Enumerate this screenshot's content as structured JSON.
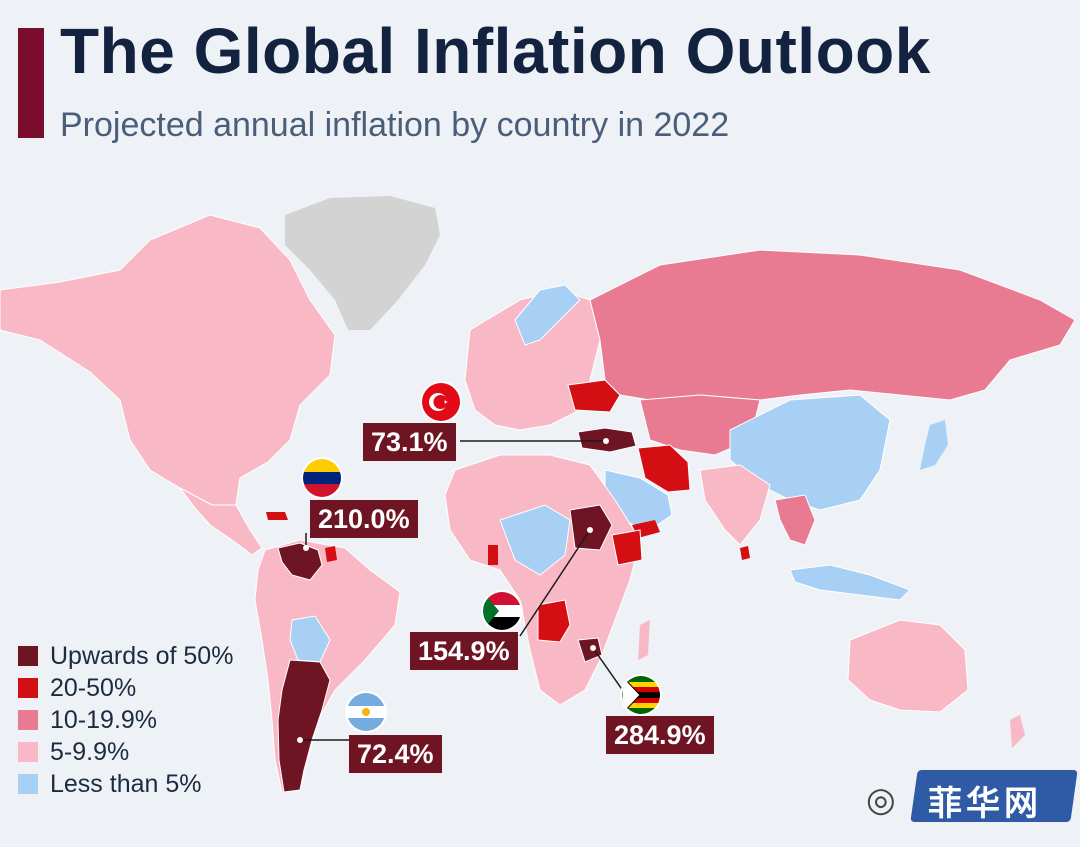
{
  "header": {
    "title": "The Global Inflation Outlook",
    "subtitle": "Projected annual inflation by country in 2022"
  },
  "colors": {
    "upwards_of_50": "#6e1423",
    "20_50": "#d40f14",
    "10_19_9": "#e87a92",
    "5_9_9": "#f9b8c6",
    "less_than_5": "#a8d0f5",
    "no_data": "#d3d3d3",
    "accent": "#7a0c2e"
  },
  "legend": [
    {
      "label": "Upwards of 50%",
      "color": "#6e1423"
    },
    {
      "label": "20-50%",
      "color": "#d40f14"
    },
    {
      "label": "10-19.9%",
      "color": "#e87a92"
    },
    {
      "label": "5-9.9%",
      "color": "#f9b8c6"
    },
    {
      "label": "Less than 5%",
      "color": "#a8d0f5"
    }
  ],
  "callouts": {
    "turkey": {
      "value": "73.1%",
      "flag": "turkey-flag-icon"
    },
    "venezuela": {
      "value": "210.0%",
      "flag": "venezuela-flag-icon"
    },
    "sudan": {
      "value": "154.9%",
      "flag": "sudan-flag-icon"
    },
    "zimbabwe": {
      "value": "284.9%",
      "flag": "zimbabwe-flag-icon"
    },
    "argentina": {
      "value": "72.4%",
      "flag": "argentina-flag-icon"
    }
  },
  "watermark": {
    "text": "菲华网",
    "icon": "wechat-icon"
  }
}
